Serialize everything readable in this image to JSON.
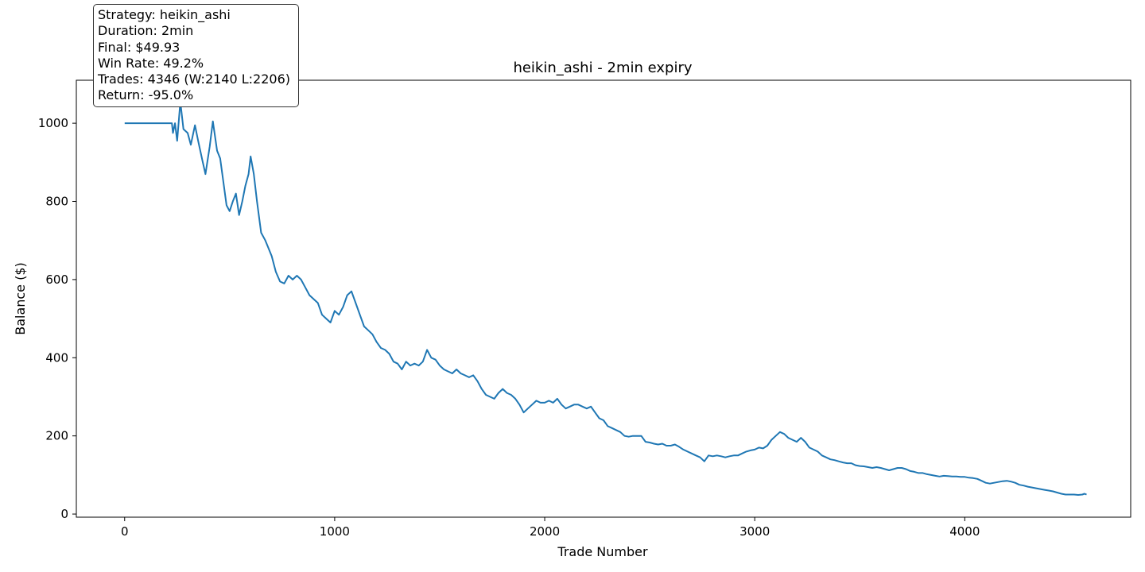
{
  "chart_data": {
    "type": "line",
    "title": "heikin_ashi - 2min expiry",
    "xlabel": "Trade Number",
    "ylabel": "Balance ($)",
    "xlim": [
      -230,
      4790
    ],
    "ylim": [
      -8,
      1110
    ],
    "xticks": [
      0,
      1000,
      2000,
      3000,
      4000
    ],
    "yticks": [
      0,
      200,
      400,
      600,
      800,
      1000
    ],
    "grid": false,
    "line_color": "#1f77b4",
    "series": [
      {
        "points": [
          [
            0,
            1000
          ],
          [
            225,
            1000
          ],
          [
            230,
            975
          ],
          [
            240,
            1000
          ],
          [
            250,
            955
          ],
          [
            265,
            1055
          ],
          [
            280,
            985
          ],
          [
            300,
            975
          ],
          [
            315,
            945
          ],
          [
            335,
            995
          ],
          [
            350,
            955
          ],
          [
            370,
            905
          ],
          [
            385,
            870
          ],
          [
            405,
            940
          ],
          [
            420,
            1005
          ],
          [
            440,
            930
          ],
          [
            455,
            910
          ],
          [
            470,
            850
          ],
          [
            485,
            790
          ],
          [
            500,
            775
          ],
          [
            515,
            800
          ],
          [
            530,
            820
          ],
          [
            545,
            765
          ],
          [
            560,
            800
          ],
          [
            575,
            840
          ],
          [
            590,
            870
          ],
          [
            600,
            915
          ],
          [
            615,
            870
          ],
          [
            630,
            800
          ],
          [
            650,
            720
          ],
          [
            670,
            700
          ],
          [
            685,
            680
          ],
          [
            700,
            660
          ],
          [
            720,
            620
          ],
          [
            740,
            595
          ],
          [
            760,
            590
          ],
          [
            780,
            610
          ],
          [
            800,
            600
          ],
          [
            820,
            610
          ],
          [
            840,
            600
          ],
          [
            860,
            580
          ],
          [
            880,
            560
          ],
          [
            900,
            550
          ],
          [
            920,
            540
          ],
          [
            940,
            510
          ],
          [
            960,
            500
          ],
          [
            980,
            490
          ],
          [
            1000,
            520
          ],
          [
            1020,
            510
          ],
          [
            1040,
            530
          ],
          [
            1060,
            560
          ],
          [
            1080,
            570
          ],
          [
            1100,
            540
          ],
          [
            1120,
            510
          ],
          [
            1140,
            480
          ],
          [
            1160,
            470
          ],
          [
            1180,
            460
          ],
          [
            1200,
            440
          ],
          [
            1220,
            425
          ],
          [
            1240,
            420
          ],
          [
            1260,
            410
          ],
          [
            1280,
            390
          ],
          [
            1300,
            385
          ],
          [
            1320,
            370
          ],
          [
            1340,
            390
          ],
          [
            1360,
            380
          ],
          [
            1380,
            385
          ],
          [
            1400,
            380
          ],
          [
            1420,
            390
          ],
          [
            1440,
            420
          ],
          [
            1460,
            400
          ],
          [
            1480,
            395
          ],
          [
            1500,
            380
          ],
          [
            1520,
            370
          ],
          [
            1540,
            365
          ],
          [
            1560,
            360
          ],
          [
            1580,
            370
          ],
          [
            1600,
            360
          ],
          [
            1620,
            355
          ],
          [
            1640,
            350
          ],
          [
            1660,
            355
          ],
          [
            1680,
            340
          ],
          [
            1700,
            320
          ],
          [
            1720,
            305
          ],
          [
            1740,
            300
          ],
          [
            1760,
            295
          ],
          [
            1780,
            310
          ],
          [
            1800,
            320
          ],
          [
            1820,
            310
          ],
          [
            1840,
            305
          ],
          [
            1860,
            295
          ],
          [
            1880,
            280
          ],
          [
            1900,
            260
          ],
          [
            1920,
            270
          ],
          [
            1940,
            280
          ],
          [
            1960,
            290
          ],
          [
            1980,
            285
          ],
          [
            2000,
            285
          ],
          [
            2020,
            290
          ],
          [
            2040,
            285
          ],
          [
            2060,
            295
          ],
          [
            2080,
            280
          ],
          [
            2100,
            270
          ],
          [
            2120,
            275
          ],
          [
            2140,
            280
          ],
          [
            2160,
            280
          ],
          [
            2180,
            275
          ],
          [
            2200,
            270
          ],
          [
            2220,
            275
          ],
          [
            2240,
            260
          ],
          [
            2260,
            245
          ],
          [
            2280,
            240
          ],
          [
            2300,
            225
          ],
          [
            2320,
            220
          ],
          [
            2340,
            215
          ],
          [
            2360,
            210
          ],
          [
            2380,
            200
          ],
          [
            2400,
            198
          ],
          [
            2420,
            200
          ],
          [
            2440,
            200
          ],
          [
            2460,
            200
          ],
          [
            2480,
            185
          ],
          [
            2500,
            183
          ],
          [
            2520,
            180
          ],
          [
            2540,
            178
          ],
          [
            2560,
            180
          ],
          [
            2580,
            175
          ],
          [
            2600,
            175
          ],
          [
            2620,
            178
          ],
          [
            2640,
            172
          ],
          [
            2660,
            165
          ],
          [
            2680,
            160
          ],
          [
            2700,
            155
          ],
          [
            2720,
            150
          ],
          [
            2740,
            145
          ],
          [
            2760,
            135
          ],
          [
            2780,
            150
          ],
          [
            2800,
            148
          ],
          [
            2820,
            150
          ],
          [
            2840,
            148
          ],
          [
            2860,
            145
          ],
          [
            2880,
            148
          ],
          [
            2900,
            150
          ],
          [
            2920,
            150
          ],
          [
            2940,
            155
          ],
          [
            2960,
            160
          ],
          [
            2980,
            163
          ],
          [
            3000,
            165
          ],
          [
            3020,
            170
          ],
          [
            3040,
            168
          ],
          [
            3060,
            175
          ],
          [
            3080,
            190
          ],
          [
            3100,
            200
          ],
          [
            3120,
            210
          ],
          [
            3140,
            205
          ],
          [
            3160,
            195
          ],
          [
            3180,
            190
          ],
          [
            3200,
            185
          ],
          [
            3220,
            195
          ],
          [
            3240,
            185
          ],
          [
            3260,
            170
          ],
          [
            3280,
            165
          ],
          [
            3300,
            160
          ],
          [
            3320,
            150
          ],
          [
            3340,
            145
          ],
          [
            3360,
            140
          ],
          [
            3380,
            138
          ],
          [
            3400,
            135
          ],
          [
            3420,
            132
          ],
          [
            3440,
            130
          ],
          [
            3460,
            130
          ],
          [
            3480,
            125
          ],
          [
            3500,
            123
          ],
          [
            3520,
            122
          ],
          [
            3540,
            120
          ],
          [
            3560,
            118
          ],
          [
            3580,
            120
          ],
          [
            3600,
            118
          ],
          [
            3620,
            115
          ],
          [
            3640,
            112
          ],
          [
            3660,
            115
          ],
          [
            3680,
            118
          ],
          [
            3700,
            118
          ],
          [
            3720,
            115
          ],
          [
            3740,
            110
          ],
          [
            3760,
            108
          ],
          [
            3780,
            105
          ],
          [
            3800,
            105
          ],
          [
            3820,
            102
          ],
          [
            3840,
            100
          ],
          [
            3860,
            98
          ],
          [
            3880,
            96
          ],
          [
            3900,
            98
          ],
          [
            3920,
            97
          ],
          [
            3940,
            96
          ],
          [
            3960,
            96
          ],
          [
            3980,
            95
          ],
          [
            4000,
            95
          ],
          [
            4020,
            93
          ],
          [
            4040,
            92
          ],
          [
            4060,
            90
          ],
          [
            4080,
            85
          ],
          [
            4100,
            80
          ],
          [
            4120,
            78
          ],
          [
            4140,
            80
          ],
          [
            4160,
            82
          ],
          [
            4180,
            84
          ],
          [
            4200,
            85
          ],
          [
            4220,
            83
          ],
          [
            4240,
            80
          ],
          [
            4260,
            75
          ],
          [
            4280,
            73
          ],
          [
            4300,
            70
          ],
          [
            4320,
            68
          ],
          [
            4340,
            66
          ],
          [
            4360,
            64
          ],
          [
            4380,
            62
          ],
          [
            4400,
            60
          ],
          [
            4420,
            58
          ],
          [
            4440,
            55
          ],
          [
            4460,
            52
          ],
          [
            4480,
            50
          ],
          [
            4500,
            50
          ],
          [
            4520,
            50
          ],
          [
            4540,
            49
          ],
          [
            4560,
            50
          ],
          [
            4570,
            52
          ],
          [
            4580,
            50
          ]
        ]
      }
    ]
  },
  "info_box": {
    "lines": [
      "Strategy: heikin_ashi",
      "Duration: 2min",
      "Final: $49.93",
      "Win Rate: 49.2%",
      "Trades: 4346 (W:2140 L:2206)",
      "Return: -95.0%"
    ]
  }
}
